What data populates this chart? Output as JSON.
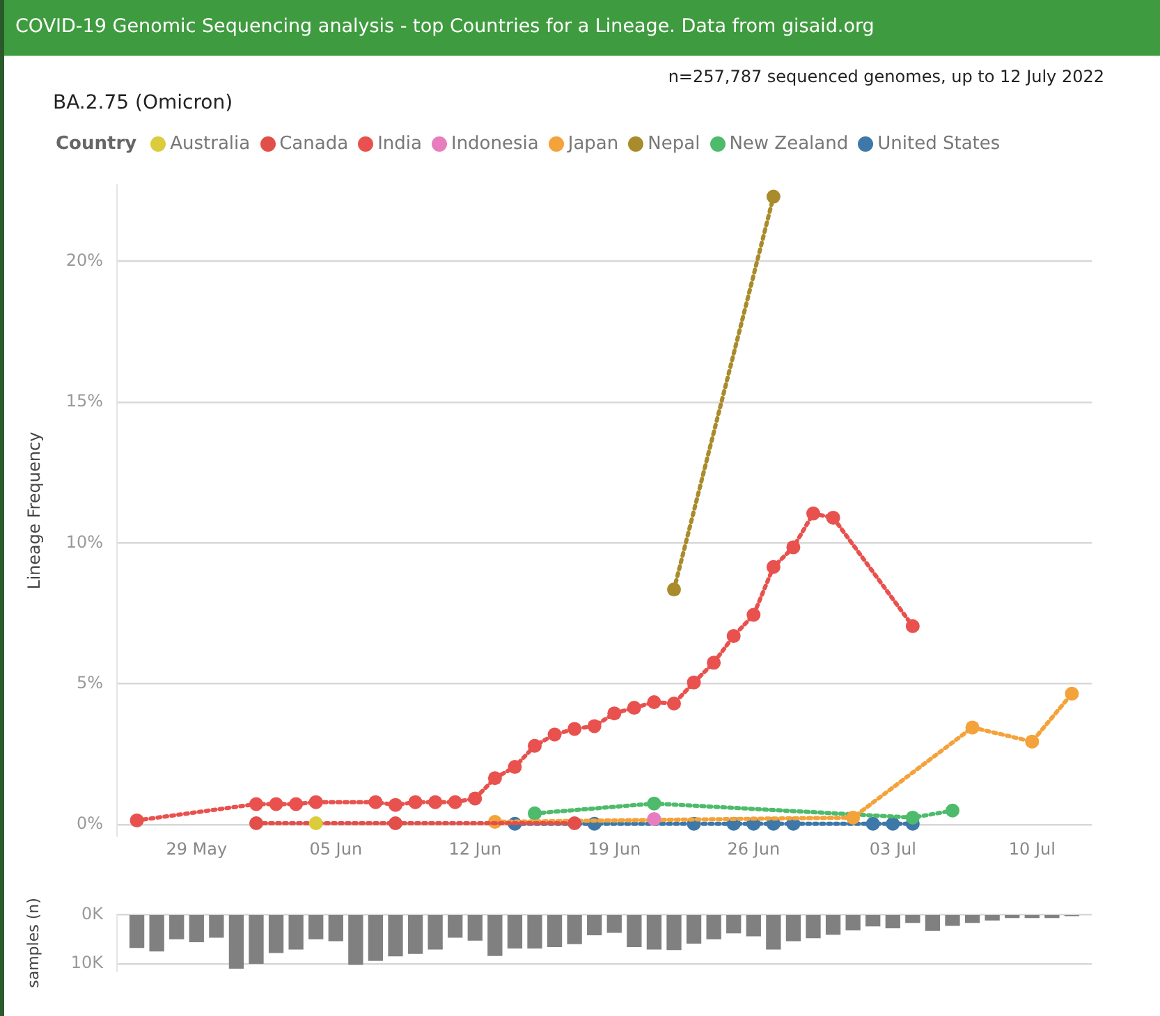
{
  "chart_data": [
    {
      "type": "line",
      "title": "BA.2.75 (Omicron)",
      "subtitle": "n=257,787 sequenced genomes, up to 12 July 2022",
      "annotations": [
        "COVID-19 Genomic Sequencing analysis - top Countries for a Lineage. Data from gisaid.org"
      ],
      "ylabel": "Lineage Frequency",
      "legend_title": "Country",
      "legend": "top left",
      "marker": "circle",
      "line_style": "dotted",
      "grid": "y",
      "xlim": [
        "2022-05-25",
        "2022-07-13"
      ],
      "xticks": [
        {
          "value": "2022-05-29",
          "label": "29 May"
        },
        {
          "value": "2022-06-05",
          "label": "05 Jun"
        },
        {
          "value": "2022-06-12",
          "label": "12 Jun"
        },
        {
          "value": "2022-06-19",
          "label": "19 Jun"
        },
        {
          "value": "2022-06-26",
          "label": "26 Jun"
        },
        {
          "value": "2022-07-03",
          "label": "03 Jul"
        },
        {
          "value": "2022-07-10",
          "label": "10 Jul"
        }
      ],
      "ylim": [
        -0.4,
        22.7
      ],
      "yticks": [
        {
          "value": 0,
          "label": "0%"
        },
        {
          "value": 5,
          "label": "5%"
        },
        {
          "value": 10,
          "label": "10%"
        },
        {
          "value": 15,
          "label": "15%"
        },
        {
          "value": 20,
          "label": "20%"
        }
      ],
      "series": [
        {
          "name": "Australia",
          "color": "#dccb3a",
          "x": [
            "2022-06-04"
          ],
          "values": [
            0.05
          ]
        },
        {
          "name": "Canada",
          "color": "#e24f4a",
          "x": [
            "2022-06-01",
            "2022-06-08",
            "2022-06-17"
          ],
          "values": [
            0.05,
            0.05,
            0.05
          ]
        },
        {
          "name": "India",
          "color": "#e8514d",
          "x": [
            "2022-05-26",
            "2022-06-01",
            "2022-06-02",
            "2022-06-03",
            "2022-06-04",
            "2022-06-07",
            "2022-06-08",
            "2022-06-09",
            "2022-06-10",
            "2022-06-11",
            "2022-06-12",
            "2022-06-13",
            "2022-06-14",
            "2022-06-15",
            "2022-06-16",
            "2022-06-17",
            "2022-06-18",
            "2022-06-19",
            "2022-06-20",
            "2022-06-21",
            "2022-06-22",
            "2022-06-23",
            "2022-06-24",
            "2022-06-25",
            "2022-06-26",
            "2022-06-27",
            "2022-06-28",
            "2022-06-29",
            "2022-06-30",
            "2022-07-04"
          ],
          "values": [
            0.15,
            0.73,
            0.73,
            0.73,
            0.8,
            0.8,
            0.7,
            0.8,
            0.8,
            0.8,
            0.93,
            1.65,
            2.05,
            2.8,
            3.2,
            3.4,
            3.5,
            3.95,
            4.15,
            4.35,
            4.3,
            5.05,
            5.75,
            6.7,
            7.45,
            9.15,
            9.85,
            11.05,
            10.9,
            7.05
          ]
        },
        {
          "name": "Indonesia",
          "color": "#e77dbf",
          "x": [
            "2022-06-21"
          ],
          "values": [
            0.2
          ]
        },
        {
          "name": "Japan",
          "color": "#f4a23a",
          "x": [
            "2022-06-13",
            "2022-07-01",
            "2022-07-07",
            "2022-07-10",
            "2022-07-12"
          ],
          "values": [
            0.1,
            0.25,
            3.45,
            2.95,
            4.65
          ]
        },
        {
          "name": "Nepal",
          "color": "#a98b2b",
          "x": [
            "2022-06-22",
            "2022-06-27"
          ],
          "values": [
            8.35,
            22.3
          ]
        },
        {
          "name": "New Zealand",
          "color": "#4dbb6b",
          "x": [
            "2022-06-15",
            "2022-06-21",
            "2022-07-04",
            "2022-07-06"
          ],
          "values": [
            0.4,
            0.75,
            0.25,
            0.5
          ]
        },
        {
          "name": "United States",
          "color": "#3d78a9",
          "x": [
            "2022-06-14",
            "2022-06-18",
            "2022-06-23",
            "2022-06-25",
            "2022-06-26",
            "2022-06-27",
            "2022-06-28",
            "2022-07-02",
            "2022-07-03",
            "2022-07-04"
          ],
          "values": [
            0.03,
            0.03,
            0.03,
            0.03,
            0.03,
            0.03,
            0.03,
            0.03,
            0.03,
            0.03
          ]
        }
      ]
    },
    {
      "type": "bar",
      "ylabel": "samples (n)",
      "tick_labels": "y",
      "grid": "y",
      "color": "#808080",
      "xlim": [
        "2022-05-25",
        "2022-07-13"
      ],
      "ylim": [
        11500,
        0
      ],
      "yticks": [
        {
          "value": 0,
          "label": "0K"
        },
        {
          "value": 10000,
          "label": "10K"
        }
      ],
      "x": [
        "2022-05-26",
        "2022-05-27",
        "2022-05-28",
        "2022-05-29",
        "2022-05-30",
        "2022-05-31",
        "2022-06-01",
        "2022-06-02",
        "2022-06-03",
        "2022-06-04",
        "2022-06-05",
        "2022-06-06",
        "2022-06-07",
        "2022-06-08",
        "2022-06-09",
        "2022-06-10",
        "2022-06-11",
        "2022-06-12",
        "2022-06-13",
        "2022-06-14",
        "2022-06-15",
        "2022-06-16",
        "2022-06-17",
        "2022-06-18",
        "2022-06-19",
        "2022-06-20",
        "2022-06-21",
        "2022-06-22",
        "2022-06-23",
        "2022-06-24",
        "2022-06-25",
        "2022-06-26",
        "2022-06-27",
        "2022-06-28",
        "2022-06-29",
        "2022-06-30",
        "2022-07-01",
        "2022-07-02",
        "2022-07-03",
        "2022-07-04",
        "2022-07-05",
        "2022-07-06",
        "2022-07-07",
        "2022-07-08",
        "2022-07-09",
        "2022-07-10",
        "2022-07-11",
        "2022-07-12"
      ],
      "values": [
        6700,
        7400,
        4900,
        5500,
        4600,
        10900,
        9900,
        7700,
        7000,
        4900,
        5300,
        10100,
        9300,
        8400,
        7900,
        7000,
        4600,
        5200,
        8300,
        6800,
        6800,
        6500,
        5900,
        4100,
        3600,
        6500,
        7000,
        7100,
        5800,
        4900,
        3700,
        4300,
        7000,
        5300,
        4700,
        4000,
        3100,
        2300,
        2700,
        1600,
        3200,
        2200,
        1600,
        1100,
        600,
        600,
        600,
        200
      ]
    }
  ]
}
